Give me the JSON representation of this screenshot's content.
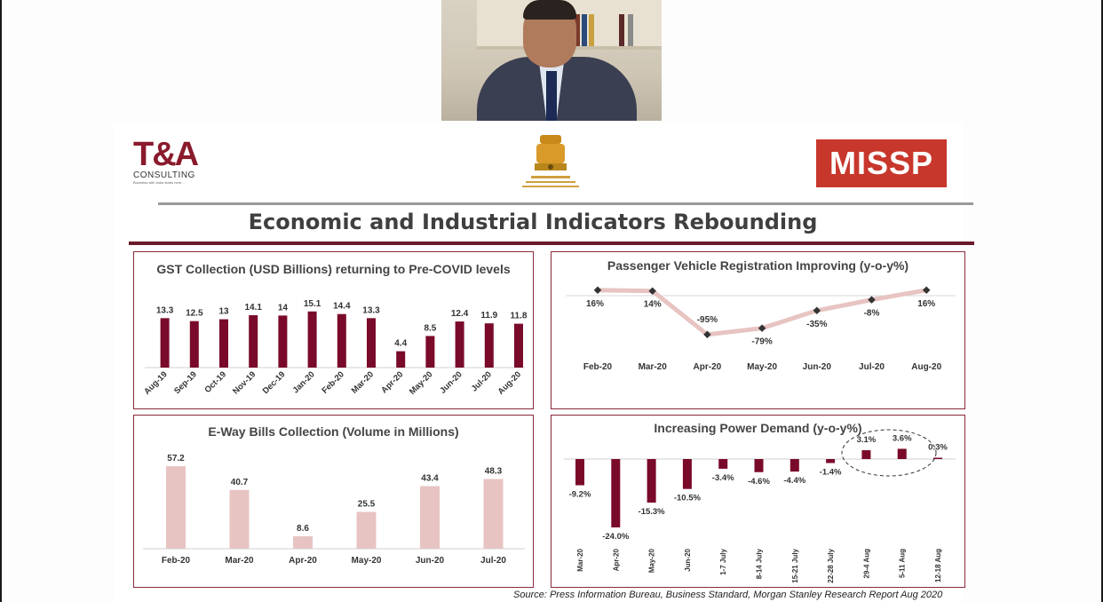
{
  "slide": {
    "title": "Economic and Industrial Indicators Rebounding",
    "source": "Source: Press Information Bureau, Business Standard, Morgan Stanley Research Report Aug 2020",
    "logos": {
      "left_mark": "T&A",
      "left_sub": "CONSULTING",
      "left_tag": "Business with India starts here...",
      "right": "MISSP"
    }
  },
  "colors": {
    "maroon": "#7a0a2a",
    "pink": "#e7c4c2",
    "frame": "#8a2a3a"
  },
  "chart_data": [
    {
      "type": "bar",
      "title": "GST Collection (USD Billions) returning to Pre-COVID levels",
      "categories": [
        "Aug-19",
        "Sep-19",
        "Oct-19",
        "Nov-19",
        "Dec-19",
        "Jan-20",
        "Feb-20",
        "Mar-20",
        "Apr-20",
        "May-20",
        "Jun-20",
        "Jul-20",
        "Aug-20"
      ],
      "values": [
        13.3,
        12.5,
        13,
        14.1,
        14,
        15.1,
        14.4,
        13.3,
        4.4,
        8.5,
        12.4,
        11.9,
        11.8
      ],
      "labels": [
        "13.3",
        "12.5",
        "13",
        "14.1",
        "14",
        "15.1",
        "14.4",
        "13.3",
        "4.4",
        "8.5",
        "12.4",
        "11.9",
        "11.8"
      ],
      "ylim": [
        0,
        16
      ],
      "grid": false
    },
    {
      "type": "line",
      "title": "Passenger Vehicle Registration Improving (y-o-y%)",
      "categories": [
        "Feb-20",
        "Mar-20",
        "Apr-20",
        "May-20",
        "Jun-20",
        "Jul-20",
        "Aug-20"
      ],
      "values": [
        16,
        14,
        -95,
        -79,
        -35,
        -8,
        16
      ],
      "labels": [
        "16%",
        "14%",
        "-95%",
        "-79%",
        "-35%",
        "-8%",
        "16%"
      ],
      "ylim": [
        -100,
        20
      ],
      "grid": false
    },
    {
      "type": "bar",
      "title": "E-Way Bills Collection (Volume in Millions)",
      "categories": [
        "Feb-20",
        "Mar-20",
        "Apr-20",
        "May-20",
        "Jun-20",
        "Jul-20"
      ],
      "values": [
        57.2,
        40.7,
        8.6,
        25.5,
        43.4,
        48.3
      ],
      "labels": [
        "57.2",
        "40.7",
        "8.6",
        "25.5",
        "43.4",
        "48.3"
      ],
      "ylim": [
        0,
        60
      ],
      "grid": false
    },
    {
      "type": "bar",
      "title": "Increasing Power Demand (y-o-y%)",
      "categories": [
        "Mar-20",
        "Apr-20",
        "May-20",
        "Jun-20",
        "1-7 July",
        "8-14 July",
        "15-21 July",
        "22-28 July",
        "29-4 Aug",
        "5-11 Aug",
        "12-18 Aug"
      ],
      "values": [
        -9.2,
        -24.0,
        -15.3,
        -10.5,
        -3.4,
        -4.6,
        -4.4,
        -1.4,
        3.1,
        3.6,
        0.3
      ],
      "labels": [
        "-9.2%",
        "-24.0%",
        "-15.3%",
        "-10.5%",
        "-3.4%",
        "-4.6%",
        "-4.4%",
        "-1.4%",
        "3.1%",
        "3.6%",
        "0.3%"
      ],
      "ylim": [
        -26,
        6
      ],
      "grid": false
    }
  ]
}
